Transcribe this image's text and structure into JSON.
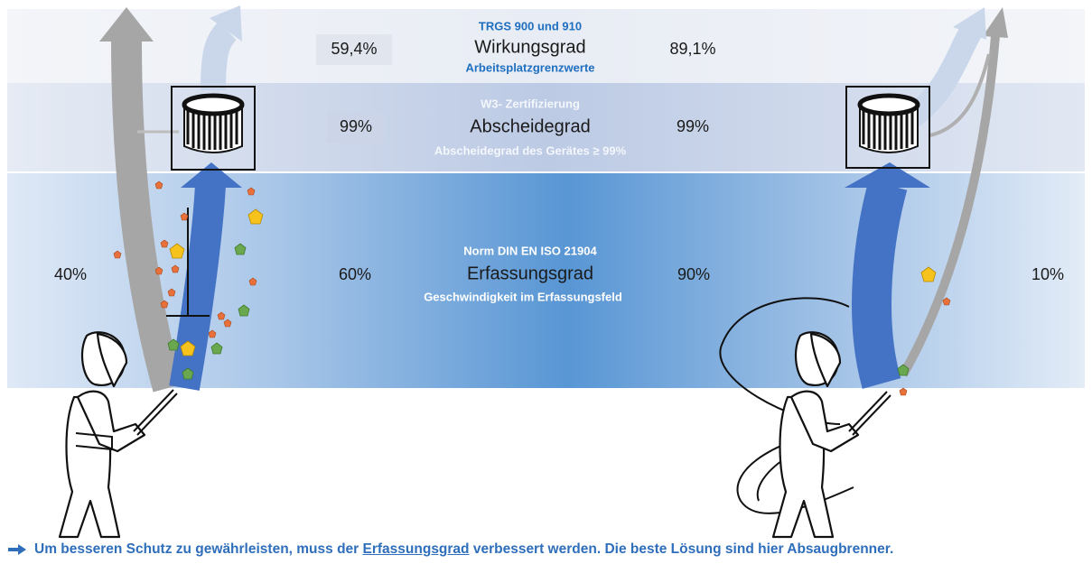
{
  "rows": [
    {
      "header": "TRGS 900 und 910",
      "title": "Wirkungsgrad",
      "subtitle": "Arbeitsplatzgrenzwerte",
      "left": "59,4%",
      "right": "89,1%"
    },
    {
      "header": "W3- Zertifizierung",
      "title": "Abscheidegrad",
      "subtitle": "Abscheidegrad des Gerätes ≥ 99%",
      "left": "99%",
      "right": "99%"
    },
    {
      "header": "Norm DIN EN ISO 21904",
      "title": "Erfassungsgrad",
      "subtitle": "Geschwindigkeit im Erfassungsfeld",
      "left": "60%",
      "right": "90%",
      "outer_left": "40%",
      "outer_right": "10%"
    }
  ],
  "footer": {
    "before": "Um besseren Schutz zu gewährleisten, muss der ",
    "link": "Erfassungsgrad",
    "after": " verbessert werden. Die beste Lösung sind hier Absaugbrenner."
  }
}
